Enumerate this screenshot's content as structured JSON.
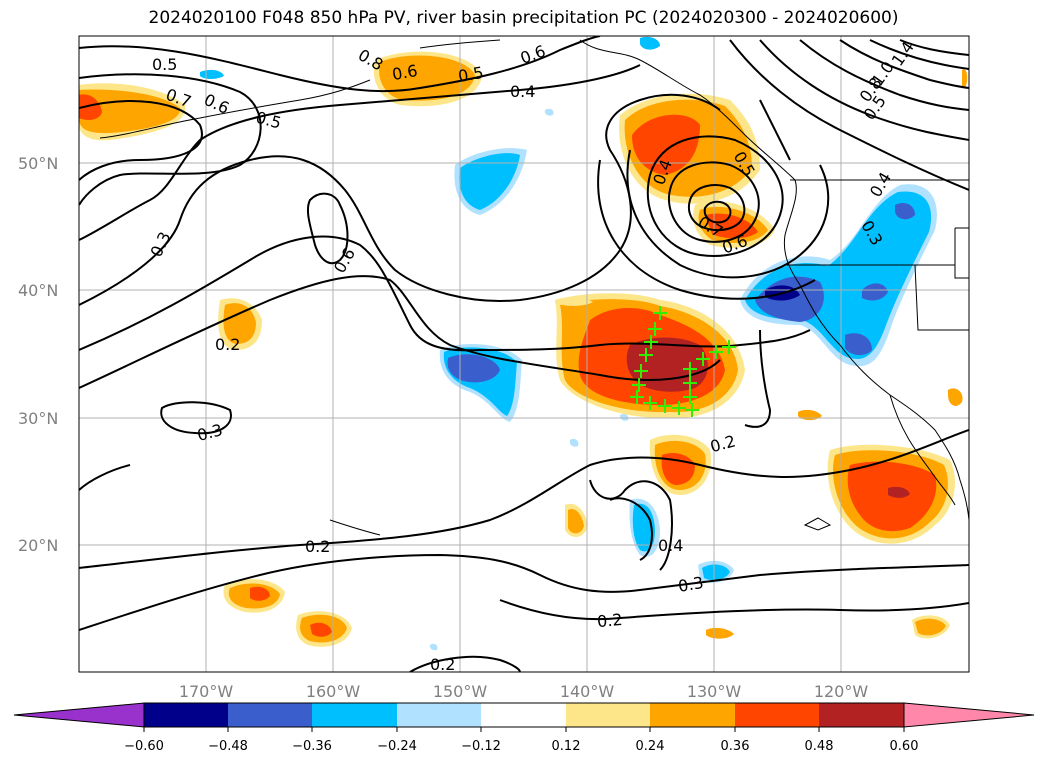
{
  "title": "2024020100 F048 850 hPa PV, river basin precipitation PC (2024020300 - 2024020600)",
  "lat_labels": [
    "50°N",
    "40°N",
    "30°N",
    "20°N"
  ],
  "lon_labels": [
    "170°W",
    "160°W",
    "150°W",
    "140°W",
    "130°W",
    "120°W"
  ],
  "contour_labels": [
    "0.5",
    "0.7",
    "0.6",
    "0.5",
    "0.8",
    "0.6",
    "0.5",
    "0.6",
    "0.4",
    "0.3",
    "0.6",
    "0.4",
    "0.5",
    "0.7",
    "0.6",
    "0.4",
    "0.3",
    "1.4",
    "1.0",
    "0.8",
    "0.5",
    "0.2",
    "0.3",
    "0.2",
    "0.2",
    "0.4",
    "0.3",
    "0.2",
    "0.2"
  ],
  "colorbar": {
    "tick_labels": [
      "−0.60",
      "−0.48",
      "−0.36",
      "−0.24",
      "−0.12",
      "0.12",
      "0.24",
      "0.36",
      "0.48",
      "0.60"
    ],
    "colors": [
      "#9932cc",
      "#00008b",
      "#3a5fcd",
      "#00bfff",
      "#b0e2ff",
      "#ffffff",
      "#fde68a",
      "#ffa500",
      "#ff4500",
      "#b22222",
      "#ff88aa"
    ]
  },
  "markers": {
    "symbol": "+",
    "color": "#33ee00"
  }
}
